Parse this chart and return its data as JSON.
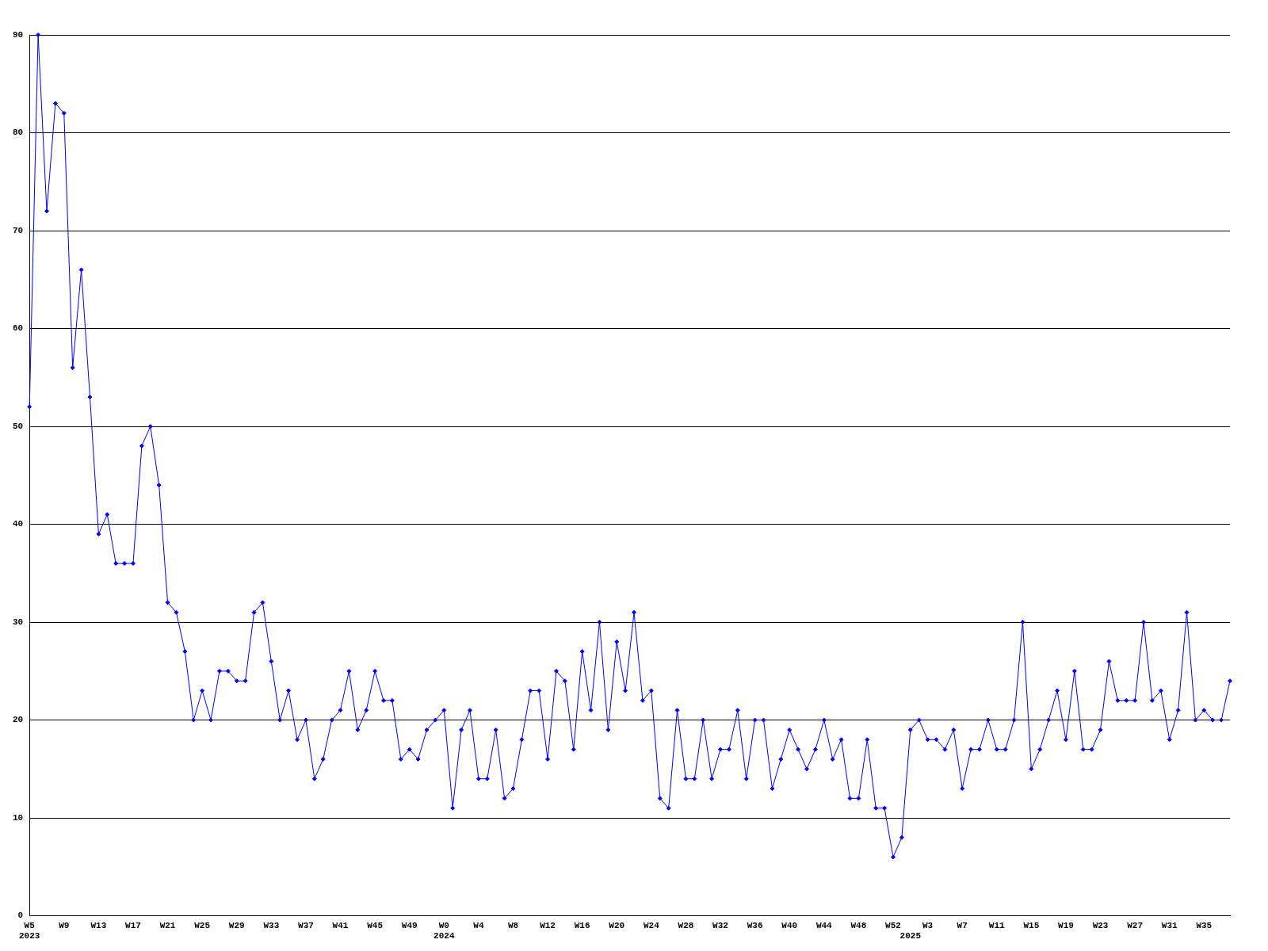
{
  "chart_data": {
    "type": "line",
    "color": "#0000ff",
    "marker": "diamond",
    "line_style": "solid",
    "grid": "y",
    "ylim": [
      0,
      90
    ],
    "yticks": [
      0,
      10,
      20,
      30,
      40,
      50,
      60,
      70,
      80,
      90
    ],
    "categories": [
      "W5\n2023",
      null,
      null,
      null,
      "W9",
      null,
      null,
      null,
      "W13",
      null,
      null,
      null,
      "W17",
      null,
      null,
      null,
      "W21",
      null,
      null,
      null,
      "W25",
      null,
      null,
      null,
      "W29",
      null,
      null,
      null,
      "W33",
      null,
      null,
      null,
      "W37",
      null,
      null,
      null,
      "W41",
      null,
      null,
      null,
      "W45",
      null,
      null,
      null,
      "W49",
      null,
      null,
      null,
      "W0\n2024",
      null,
      null,
      null,
      "W4",
      null,
      null,
      null,
      "W8",
      null,
      null,
      null,
      "W12",
      null,
      null,
      null,
      "W16",
      null,
      null,
      null,
      "W20",
      null,
      null,
      null,
      "W24",
      null,
      null,
      null,
      "W28",
      null,
      null,
      null,
      "W32",
      null,
      null,
      null,
      "W36",
      null,
      null,
      null,
      "W40",
      null,
      null,
      null,
      "W44",
      null,
      null,
      null,
      "W48",
      null,
      null,
      null,
      "W52",
      null,
      "\n2025",
      null,
      "W3",
      null,
      null,
      null,
      "W7",
      null,
      null,
      null,
      "W11",
      null,
      null,
      null,
      "W15",
      null,
      null,
      null,
      "W19",
      null,
      null,
      null,
      "W23",
      null,
      null,
      null,
      "W27",
      null,
      null,
      null,
      "W31",
      null,
      null,
      null,
      "W35",
      null,
      null,
      null
    ],
    "values": [
      52,
      90,
      72,
      83,
      82,
      56,
      66,
      53,
      39,
      41,
      36,
      36,
      36,
      48,
      50,
      44,
      32,
      31,
      27,
      20,
      23,
      20,
      25,
      25,
      24,
      24,
      31,
      32,
      26,
      20,
      23,
      18,
      20,
      14,
      16,
      20,
      21,
      25,
      19,
      21,
      25,
      22,
      22,
      16,
      17,
      16,
      19,
      20,
      21,
      11,
      19,
      21,
      14,
      14,
      19,
      12,
      13,
      18,
      23,
      23,
      16,
      25,
      24,
      17,
      27,
      21,
      30,
      19,
      28,
      23,
      31,
      22,
      23,
      12,
      11,
      21,
      14,
      14,
      20,
      14,
      17,
      17,
      21,
      14,
      20,
      20,
      13,
      16,
      19,
      17,
      15,
      17,
      20,
      16,
      18,
      12,
      12,
      18,
      11,
      11,
      6,
      8,
      19,
      20,
      18,
      18,
      17,
      19,
      13,
      17,
      17,
      20,
      17,
      17,
      20,
      30,
      15,
      17,
      20,
      23,
      18,
      25,
      17,
      17,
      19,
      26,
      22,
      22,
      22,
      30,
      22,
      23,
      18,
      21,
      31,
      20,
      21,
      20,
      20,
      24
    ]
  }
}
